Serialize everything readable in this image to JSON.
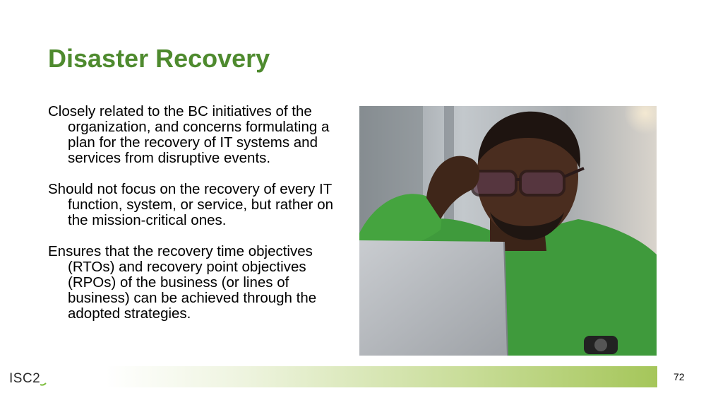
{
  "slide": {
    "title": "Disaster Recovery",
    "paragraphs": [
      "Closely related to the BC initiatives of the organization, and concerns formulating a plan for the recovery of IT systems and services from disruptive events.",
      "Should not focus on the recovery of every IT function, system, or service, but rather on the mission-critical ones.",
      "Ensures that the recovery time objectives (RTOs) and recovery point objectives (RPOs) of the business (or lines of business) can be achieved through the adopted strategies."
    ],
    "page_number": "72"
  },
  "footer": {
    "logo_text": "ISC2"
  },
  "colors": {
    "title": "#4e8a2e",
    "accent_green": "#a5c65a",
    "sweater_green": "#3f9a3c"
  },
  "icons": {
    "logo": "isc2-logo",
    "photo": "man-at-laptop-photo"
  }
}
